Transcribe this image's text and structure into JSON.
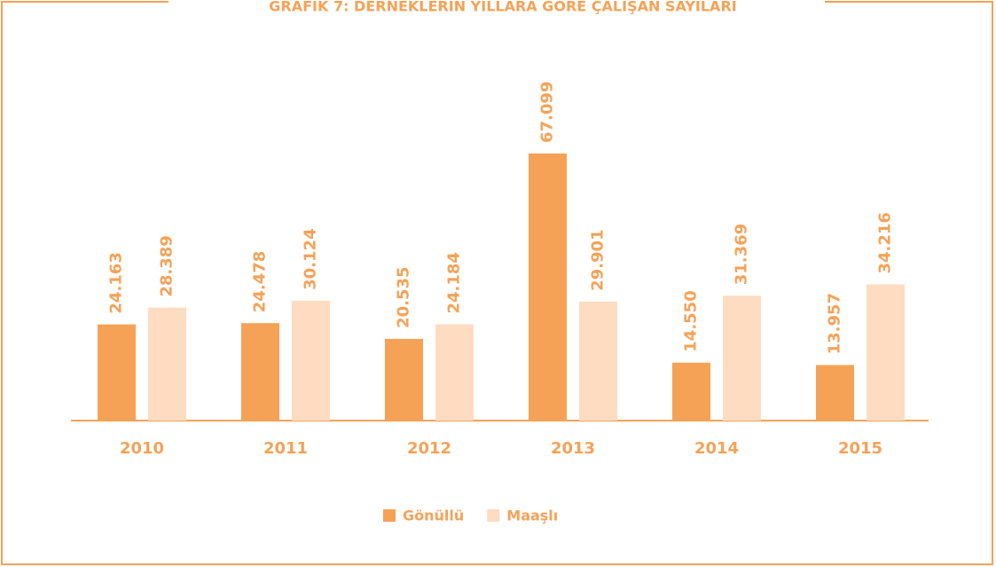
{
  "chart_data": {
    "type": "bar",
    "title": "GRAFİK 7: DERNEKLERİN YILLARA GÖRE ÇALIŞAN SAYILARI",
    "categories": [
      "2010",
      "2011",
      "2012",
      "2013",
      "2014",
      "2015"
    ],
    "series": [
      {
        "name": "Gönüllü",
        "color": "#f5a257",
        "values": [
          24163,
          24478,
          20535,
          67099,
          14550,
          13957
        ],
        "value_labels": [
          "24.163",
          "24.478",
          "20.535",
          "67.099",
          "14.550",
          "13.957"
        ]
      },
      {
        "name": "Maaşlı",
        "color": "#fddcc1",
        "values": [
          28389,
          30124,
          24184,
          29901,
          31369,
          34216
        ],
        "value_labels": [
          "28.389",
          "30.124",
          "24.184",
          "29.901",
          "31.369",
          "34.216"
        ]
      }
    ],
    "legend": "bottom"
  }
}
